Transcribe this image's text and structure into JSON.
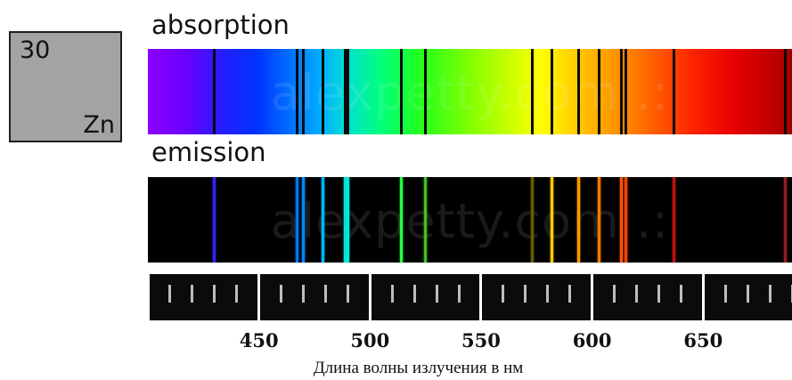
{
  "element": {
    "number": "30",
    "symbol": "Zn",
    "box_color": "#a3a3a3"
  },
  "labels": {
    "absorption": "absorption",
    "emission": "emission"
  },
  "watermark": "alexpetty.com .:",
  "axis": {
    "title": "Длина волны излучения в нм",
    "min_nm": 400,
    "max_nm": 690,
    "ticks": [
      450,
      500,
      550,
      600,
      650
    ],
    "minor_step_nm": 10
  },
  "lines_nm": [
    {
      "nm": 430,
      "color": "#3322ff"
    },
    {
      "nm": 467,
      "color": "#0077ff"
    },
    {
      "nm": 470,
      "color": "#0088ff"
    },
    {
      "nm": 479,
      "color": "#00b8ff"
    },
    {
      "nm": 489,
      "color": "#00e0e0"
    },
    {
      "nm": 490,
      "color": "#00e8d8"
    },
    {
      "nm": 514,
      "color": "#20ff40"
    },
    {
      "nm": 525,
      "color": "#40c020"
    },
    {
      "nm": 573,
      "color": "#606000"
    },
    {
      "nm": 582,
      "color": "#ffcc00"
    },
    {
      "nm": 594,
      "color": "#ff9900"
    },
    {
      "nm": 603,
      "color": "#ff7700"
    },
    {
      "nm": 613,
      "color": "#ff5500"
    },
    {
      "nm": 615,
      "color": "#ff4400"
    },
    {
      "nm": 637,
      "color": "#c01010"
    },
    {
      "nm": 687,
      "color": "#902020"
    }
  ]
}
